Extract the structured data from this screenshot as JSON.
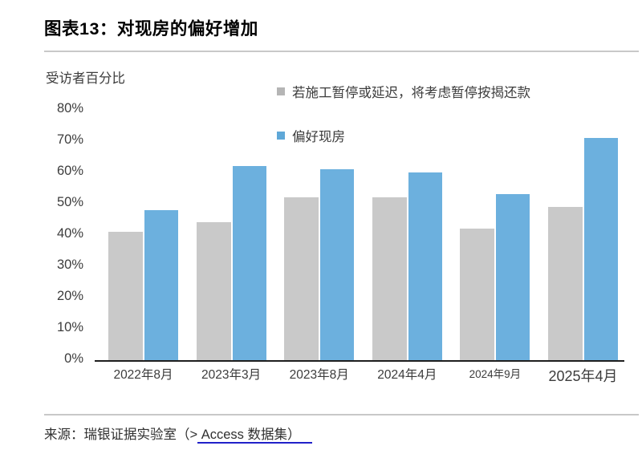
{
  "page": {
    "title": "图表13：对现房的偏好增加",
    "axis_title": "受访者百分比",
    "source_prefix": "来源：瑞银证据实验室（>",
    "source_link": " Access 数据集）"
  },
  "legend": [
    {
      "label": "若施工暂停或延迟，将考虑暂停按揭还款",
      "color": "#b5b5b5"
    },
    {
      "label": "偏好现房",
      "color": "#5fa8d8"
    }
  ],
  "colors": {
    "gray_bar": "#c9c9c9",
    "blue_bar": "#6cb0de",
    "axis_line": "#1f1f1f",
    "link_underline": "#2121c8"
  },
  "chart_data": {
    "type": "bar",
    "title": "图表13：对现房的偏好增加",
    "ylabel": "受访者百分比",
    "xlabel": "",
    "categories": [
      "2022年8月",
      "2023年3月",
      "2023年8月",
      "2024年4月",
      "2024年9月",
      "2025年4月"
    ],
    "series": [
      {
        "name": "若施工暂停或延迟，将考虑暂停按揭还款",
        "color": "#c9c9c9",
        "values": [
          41,
          44,
          52,
          52,
          42,
          49
        ]
      },
      {
        "name": "偏好现房",
        "color": "#6cb0de",
        "values": [
          48,
          62,
          61,
          60,
          53,
          71
        ]
      }
    ],
    "ylim": [
      0,
      80
    ],
    "yticks": [
      "80%",
      "70%",
      "60%",
      "50%",
      "40%",
      "30%",
      "20%",
      "10%",
      "0%"
    ],
    "grid": false,
    "legend_position": "top-center",
    "source": "来源：瑞银证据实验室（> Access 数据集）"
  }
}
